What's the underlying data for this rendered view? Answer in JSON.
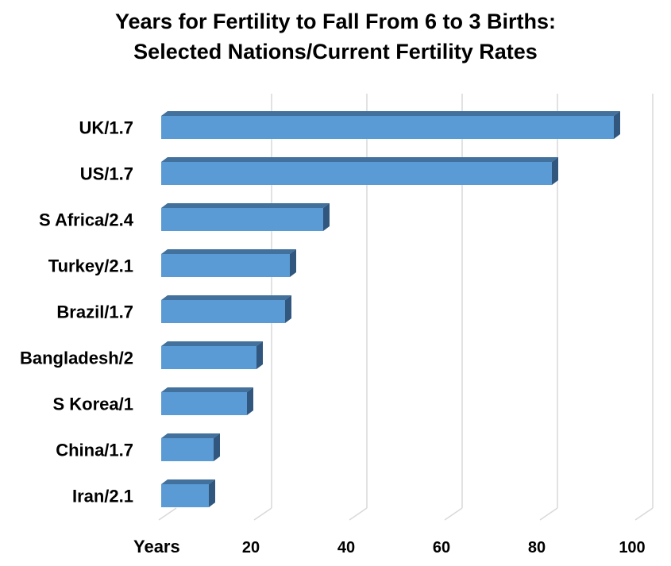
{
  "chart_data": {
    "type": "bar",
    "orientation": "horizontal",
    "style": "3d",
    "title_lines": [
      "Years for Fertility to Fall From 6 to 3 Births:",
      "Selected Nations/Current Fertility Rates"
    ],
    "xlabel": "Years",
    "categories": [
      "UK/1.7",
      "US/1.7",
      "S Africa/2.4",
      "Turkey/2.1",
      "Brazil/1.7",
      "Bangladesh/2",
      "S Korea/1",
      "China/1.7",
      "Iran/2.1"
    ],
    "values": [
      95,
      82,
      34,
      27,
      26,
      20,
      18,
      11,
      10
    ],
    "x_ticks": [
      "20",
      "40",
      "60",
      "80",
      "100"
    ],
    "xlim": [
      0,
      100
    ],
    "grid": true,
    "colors": {
      "bar_front": "#5b9bd5",
      "bar_top": "#41719c",
      "bar_side": "#31577e",
      "grid": "#d9d9d9"
    }
  }
}
